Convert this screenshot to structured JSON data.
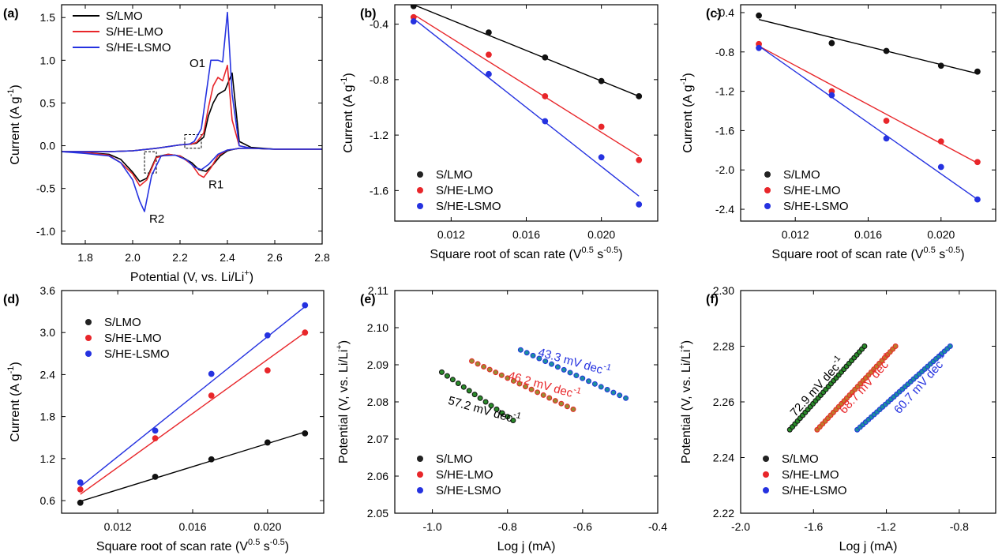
{
  "chart_data": [
    {
      "panel": "(a)",
      "type": "line",
      "xlabel": "Potential (V, vs. Li/Li",
      "xlabel_sup": "+",
      "xlabel_end": ")",
      "ylabel": "Current (A g",
      "ylabel_sup": "-1",
      "ylabel_end": ")",
      "xlim": [
        1.7,
        2.8
      ],
      "ylim": [
        -1.15,
        1.65
      ],
      "xticks": [
        1.8,
        2.0,
        2.2,
        2.4,
        2.6,
        2.8
      ],
      "yticks": [
        -1.0,
        -0.5,
        0.0,
        0.5,
        1.0,
        1.5
      ],
      "legend_position": "top-left",
      "annotations": [
        {
          "text": "O1",
          "x": 2.24,
          "y": 0.92
        },
        {
          "text": "R1",
          "x": 2.32,
          "y": -0.5
        },
        {
          "text": "R2",
          "x": 2.07,
          "y": -0.9
        }
      ],
      "dashed_boxes": [
        [
          2.22,
          2.29,
          -0.03,
          0.13
        ],
        [
          2.05,
          2.1,
          -0.32,
          -0.07
        ]
      ],
      "series": [
        {
          "name": "S/LMO",
          "color": "#000000",
          "x": [
            1.7,
            1.8,
            1.9,
            1.95,
            2.0,
            2.03,
            2.06,
            2.1,
            2.15,
            2.2,
            2.25,
            2.28,
            2.31,
            2.34,
            2.37,
            2.4,
            2.43,
            2.45,
            2.47,
            2.5,
            2.6,
            2.8,
            2.6,
            2.5,
            2.45,
            2.42,
            2.39,
            2.36,
            2.34,
            2.32,
            2.3,
            2.27,
            2.25,
            2.2,
            2.1,
            2.0,
            1.9,
            1.8,
            1.7
          ],
          "y": [
            -0.07,
            -0.08,
            -0.1,
            -0.16,
            -0.31,
            -0.42,
            -0.38,
            -0.13,
            -0.1,
            -0.12,
            -0.2,
            -0.28,
            -0.3,
            -0.22,
            -0.12,
            -0.06,
            -0.04,
            -0.03,
            -0.03,
            -0.03,
            -0.04,
            -0.04,
            -0.04,
            -0.02,
            0.05,
            0.85,
            0.65,
            0.6,
            0.5,
            0.35,
            0.1,
            0.03,
            0.02,
            0.01,
            -0.03,
            -0.06,
            -0.07,
            -0.07,
            -0.07
          ]
        },
        {
          "name": "S/HE-LMO",
          "color": "#e8262a",
          "x": [
            1.7,
            1.8,
            1.9,
            1.95,
            2.0,
            2.03,
            2.06,
            2.1,
            2.15,
            2.2,
            2.25,
            2.28,
            2.3,
            2.33,
            2.36,
            2.4,
            2.43,
            2.45,
            2.5,
            2.6,
            2.8,
            2.6,
            2.5,
            2.45,
            2.42,
            2.4,
            2.38,
            2.36,
            2.34,
            2.32,
            2.3,
            2.27,
            2.25,
            2.2,
            2.1,
            2.0,
            1.9,
            1.8,
            1.7
          ],
          "y": [
            -0.07,
            -0.08,
            -0.11,
            -0.2,
            -0.33,
            -0.47,
            -0.4,
            -0.14,
            -0.1,
            -0.12,
            -0.22,
            -0.34,
            -0.37,
            -0.26,
            -0.12,
            -0.05,
            -0.04,
            -0.03,
            -0.03,
            -0.04,
            -0.04,
            -0.04,
            -0.03,
            0.0,
            0.3,
            0.94,
            0.76,
            0.8,
            0.7,
            0.45,
            0.15,
            0.04,
            0.02,
            0.01,
            -0.03,
            -0.06,
            -0.07,
            -0.07,
            -0.07
          ]
        },
        {
          "name": "S/HE-LSMO",
          "color": "#2532e0",
          "x": [
            1.7,
            1.8,
            1.9,
            1.95,
            2.0,
            2.03,
            2.05,
            2.08,
            2.12,
            2.18,
            2.23,
            2.26,
            2.29,
            2.32,
            2.36,
            2.4,
            2.43,
            2.45,
            2.5,
            2.6,
            2.8,
            2.6,
            2.5,
            2.45,
            2.42,
            2.4,
            2.38,
            2.36,
            2.33,
            2.31,
            2.29,
            2.26,
            2.24,
            2.2,
            2.1,
            2.0,
            1.9,
            1.8,
            1.7
          ],
          "y": [
            -0.07,
            -0.09,
            -0.12,
            -0.2,
            -0.4,
            -0.65,
            -0.77,
            -0.35,
            -0.12,
            -0.11,
            -0.17,
            -0.25,
            -0.28,
            -0.22,
            -0.1,
            -0.05,
            -0.04,
            -0.03,
            -0.03,
            -0.04,
            -0.04,
            -0.04,
            -0.03,
            0.0,
            0.6,
            1.56,
            0.98,
            1.0,
            1.0,
            0.6,
            0.2,
            0.05,
            0.02,
            0.01,
            -0.03,
            -0.06,
            -0.07,
            -0.07,
            -0.07
          ]
        }
      ]
    },
    {
      "panel": "(b)",
      "type": "scatter",
      "xlabel": "Square root of scan rate (V",
      "xlabel_sup": "0.5",
      "xlabel_mid": " s",
      "xlabel_sup2": "-0.5",
      "xlabel_end": ")",
      "ylabel": "Current (A g",
      "ylabel_sup": "-1",
      "ylabel_end": ")",
      "xlim": [
        0.009,
        0.023
      ],
      "ylim": [
        -1.82,
        -0.26
      ],
      "xticks": [
        0.012,
        0.016,
        0.02
      ],
      "yticks": [
        -0.4,
        -0.8,
        -1.2,
        -1.6
      ],
      "xtick_labels": [
        "0.012",
        "0.016",
        "0.020"
      ],
      "legend_position": "bottom-left",
      "series": [
        {
          "name": "S/LMO",
          "color": "#111111",
          "x": [
            0.01,
            0.014,
            0.017,
            0.02,
            0.022
          ],
          "y": [
            -0.27,
            -0.46,
            -0.64,
            -0.81,
            -0.92
          ],
          "fit": [
            [
              0.01,
              -0.26
            ],
            [
              0.022,
              -0.92
            ]
          ]
        },
        {
          "name": "S/HE-LMO",
          "color": "#e8262a",
          "x": [
            0.01,
            0.014,
            0.017,
            0.02,
            0.022
          ],
          "y": [
            -0.35,
            -0.62,
            -0.92,
            -1.14,
            -1.38
          ],
          "fit": [
            [
              0.01,
              -0.33
            ],
            [
              0.022,
              -1.35
            ]
          ]
        },
        {
          "name": "S/HE-LSMO",
          "color": "#2532e0",
          "x": [
            0.01,
            0.014,
            0.017,
            0.02,
            0.022
          ],
          "y": [
            -0.38,
            -0.76,
            -1.1,
            -1.36,
            -1.7
          ],
          "fit": [
            [
              0.01,
              -0.36
            ],
            [
              0.022,
              -1.64
            ]
          ]
        }
      ]
    },
    {
      "panel": "(c)",
      "type": "scatter",
      "xlabel": "Square root of scan rate (V",
      "xlabel_sup": "0.5",
      "xlabel_mid": " s",
      "xlabel_sup2": "-0.5",
      "xlabel_end": ")",
      "ylabel": "Current (A g",
      "ylabel_sup": "-1",
      "ylabel_end": ")",
      "xlim": [
        0.009,
        0.023
      ],
      "ylim": [
        -2.52,
        -0.32
      ],
      "xticks": [
        0.012,
        0.016,
        0.02
      ],
      "yticks": [
        -0.4,
        -0.8,
        -1.2,
        -1.6,
        -2.0,
        -2.4
      ],
      "xtick_labels": [
        "0.012",
        "0.016",
        "0.020"
      ],
      "legend_position": "bottom-left",
      "series": [
        {
          "name": "S/LMO",
          "color": "#111111",
          "x": [
            0.01,
            0.014,
            0.017,
            0.02,
            0.022
          ],
          "y": [
            -0.43,
            -0.71,
            -0.79,
            -0.94,
            -1.0
          ],
          "fit": [
            [
              0.01,
              -0.47
            ],
            [
              0.022,
              -1.02
            ]
          ]
        },
        {
          "name": "S/HE-LMO",
          "color": "#e8262a",
          "x": [
            0.01,
            0.014,
            0.017,
            0.02,
            0.022
          ],
          "y": [
            -0.72,
            -1.2,
            -1.5,
            -1.71,
            -1.92
          ],
          "fit": [
            [
              0.01,
              -0.74
            ],
            [
              0.022,
              -1.93
            ]
          ]
        },
        {
          "name": "S/HE-LSMO",
          "color": "#2532e0",
          "x": [
            0.01,
            0.014,
            0.017,
            0.02,
            0.022
          ],
          "y": [
            -0.76,
            -1.24,
            -1.68,
            -1.97,
            -2.3
          ],
          "fit": [
            [
              0.01,
              -0.74
            ],
            [
              0.022,
              -2.3
            ]
          ]
        }
      ]
    },
    {
      "panel": "(d)",
      "type": "scatter",
      "xlabel": "Square root of scan rate (V",
      "xlabel_sup": "0.5",
      "xlabel_mid": " s",
      "xlabel_sup2": "-0.5",
      "xlabel_end": ")",
      "ylabel": "Current (A g",
      "ylabel_sup": "-1",
      "ylabel_end": ")",
      "xlim": [
        0.009,
        0.023
      ],
      "ylim": [
        0.42,
        3.6
      ],
      "xticks": [
        0.012,
        0.016,
        0.02
      ],
      "yticks": [
        0.6,
        1.2,
        1.8,
        2.4,
        3.0,
        3.6
      ],
      "xtick_labels": [
        "0.012",
        "0.016",
        "0.020"
      ],
      "legend_position": "top-left",
      "series": [
        {
          "name": "S/LMO",
          "color": "#111111",
          "x": [
            0.01,
            0.014,
            0.017,
            0.02,
            0.022
          ],
          "y": [
            0.57,
            0.94,
            1.19,
            1.43,
            1.56
          ],
          "fit": [
            [
              0.01,
              0.59
            ],
            [
              0.022,
              1.58
            ]
          ]
        },
        {
          "name": "S/HE-LMO",
          "color": "#e8262a",
          "x": [
            0.01,
            0.014,
            0.017,
            0.02,
            0.022
          ],
          "y": [
            0.76,
            1.49,
            2.1,
            2.46,
            3.0
          ],
          "fit": [
            [
              0.01,
              0.69
            ],
            [
              0.022,
              3.0
            ]
          ]
        },
        {
          "name": "S/HE-LSMO",
          "color": "#2532e0",
          "x": [
            0.01,
            0.014,
            0.017,
            0.02,
            0.022
          ],
          "y": [
            0.86,
            1.6,
            2.41,
            2.96,
            3.39
          ],
          "fit": [
            [
              0.01,
              0.8
            ],
            [
              0.022,
              3.37
            ]
          ]
        }
      ]
    },
    {
      "panel": "(e)",
      "type": "scatter",
      "xlabel": "Log j (mA)",
      "ylabel": "Potential (V, vs. Li/Li",
      "ylabel_sup": "+",
      "ylabel_end": ")",
      "xlim": [
        -1.1,
        -0.4
      ],
      "ylim": [
        2.05,
        2.11
      ],
      "xticks": [
        -1.0,
        -0.8,
        -0.6,
        -0.4
      ],
      "yticks": [
        2.05,
        2.06,
        2.07,
        2.08,
        2.09,
        2.1,
        2.11
      ],
      "xtick_labels": [
        "-1.0",
        "-0.8",
        "-0.6",
        "-0.4"
      ],
      "ytick_labels": [
        "2.05",
        "2.06",
        "2.07",
        "2.08",
        "2.09",
        "2.10",
        "2.11"
      ],
      "legend_position": "bottom-left",
      "slopes": [
        {
          "text": "57.2 mV dec",
          "sup": "-1",
          "color": "#000000",
          "x": -0.96,
          "y": 2.0795,
          "angle": 16
        },
        {
          "text": "46.2 mV dec",
          "sup": "-1",
          "color": "#e8262a",
          "x": -0.8,
          "y": 2.0862,
          "angle": 16
        },
        {
          "text": "43.3 mV dec",
          "sup": "-1",
          "color": "#2532e0",
          "x": -0.72,
          "y": 2.0925,
          "angle": 16
        }
      ],
      "series": [
        {
          "name": "S/LMO",
          "color": "#111111",
          "fill": "#2a8a2a",
          "x_range": [
            -0.975,
            -0.785
          ],
          "y_range": [
            2.088,
            2.075
          ],
          "n": 14
        },
        {
          "name": "S/HE-LMO",
          "color": "#e8262a",
          "fill": "#9a8a30",
          "x_range": [
            -0.895,
            -0.625
          ],
          "y_range": [
            2.091,
            2.078
          ],
          "n": 18
        },
        {
          "name": "S/HE-LSMO",
          "color": "#2532e0",
          "fill": "#1c8f9e",
          "x_range": [
            -0.765,
            -0.485
          ],
          "y_range": [
            2.094,
            2.081
          ],
          "n": 18
        }
      ]
    },
    {
      "panel": "(f)",
      "type": "scatter",
      "xlabel": "Log j (mA)",
      "ylabel": "Potential (V, vs. Li/Li",
      "ylabel_sup": "+",
      "ylabel_end": ")",
      "xlim": [
        -2.0,
        -0.6
      ],
      "ylim": [
        2.22,
        2.3
      ],
      "xticks": [
        -2.0,
        -1.6,
        -1.2,
        -0.8
      ],
      "yticks": [
        2.22,
        2.24,
        2.26,
        2.28,
        2.3
      ],
      "xtick_labels": [
        "-2.0",
        "-1.6",
        "-1.2",
        "-0.8"
      ],
      "ytick_labels": [
        "2.22",
        "2.24",
        "2.26",
        "2.28",
        "2.30"
      ],
      "legend_position": "bottom-left",
      "slopes": [
        {
          "text": "72.9 mV dec",
          "sup": "-1",
          "color": "#000000",
          "x": -1.7,
          "y": 2.2545,
          "angle": -48
        },
        {
          "text": "68.7 mV dec",
          "sup": "-1",
          "color": "#e8262a",
          "x": -1.43,
          "y": 2.2555,
          "angle": -48
        },
        {
          "text": "60.7 mV dec",
          "sup": "-1",
          "color": "#2532e0",
          "x": -1.13,
          "y": 2.2555,
          "angle": -48
        }
      ],
      "series": [
        {
          "name": "S/LMO",
          "color": "#111111",
          "fill": "#2a8a2a",
          "x_range": [
            -1.73,
            -1.32
          ],
          "y_range": [
            2.25,
            2.28
          ],
          "n": 30
        },
        {
          "name": "S/HE-LMO",
          "color": "#e8262a",
          "fill": "#c07a2a",
          "x_range": [
            -1.58,
            -1.15
          ],
          "y_range": [
            2.25,
            2.28
          ],
          "n": 30
        },
        {
          "name": "S/HE-LSMO",
          "color": "#2532e0",
          "fill": "#1c8f9e",
          "x_range": [
            -1.36,
            -0.85
          ],
          "y_range": [
            2.25,
            2.28
          ],
          "n": 34
        }
      ]
    }
  ]
}
